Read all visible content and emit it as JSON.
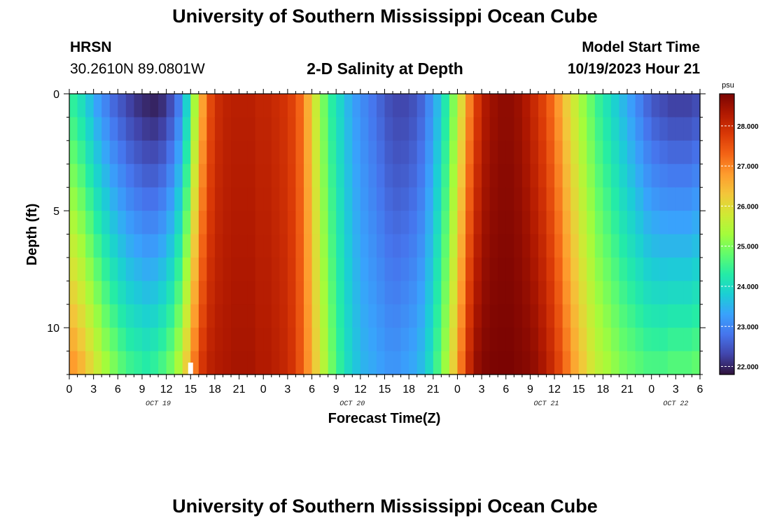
{
  "header": {
    "title_top": "University of Southern Mississippi Ocean Cube",
    "station": "HRSN",
    "coords": "30.2610N  89.0801W",
    "subtitle": "2-D Salinity at Depth",
    "model_label": "Model Start Time",
    "model_time": "10/19/2023 Hour 21",
    "title_bottom": "University of Southern Mississippi Ocean Cube"
  },
  "colors": {
    "ramp": [
      "#30123b",
      "#4145ab",
      "#4675ed",
      "#39a2fc",
      "#1bcfd4",
      "#24eca6",
      "#61fc6c",
      "#a4fc3b",
      "#d1e834",
      "#f3c63a",
      "#fe9b2d",
      "#f36315",
      "#d93806",
      "#b11901",
      "#7a0402"
    ],
    "marker": "#ffffff"
  },
  "chart_data": {
    "type": "heatmap",
    "title": "2-D Salinity at Depth",
    "xlabel": "Forecast Time(Z)",
    "ylabel": "Depth (ft)",
    "x_hours_range": [
      0,
      78
    ],
    "y_range": [
      0,
      12
    ],
    "y_ticks": [
      0,
      5,
      10
    ],
    "x_tick_labels": [
      "0",
      "3",
      "6",
      "9",
      "12",
      "15",
      "18",
      "21",
      "0",
      "3",
      "6",
      "9",
      "12",
      "15",
      "18",
      "21",
      "0",
      "3",
      "6",
      "9",
      "12",
      "15",
      "18",
      "21",
      "0",
      "3",
      "6"
    ],
    "date_labels": [
      {
        "text": "OCT 19",
        "hour": 11
      },
      {
        "text": "OCT 20",
        "hour": 35
      },
      {
        "text": "OCT 21",
        "hour": 59
      },
      {
        "text": "OCT 22",
        "hour": 75
      }
    ],
    "colorbar": {
      "unit": "psu",
      "min": 21.8,
      "max": 28.8,
      "ticks": [
        "22.000",
        "23.000",
        "24.000",
        "25.000",
        "26.000",
        "27.000",
        "28.000"
      ]
    },
    "marker_hour": 15,
    "surface_salinity_by_hour": [
      24.3,
      24.0,
      23.6,
      23.2,
      22.9,
      22.6,
      22.4,
      22.2,
      22.05,
      21.95,
      21.9,
      22.0,
      22.3,
      22.8,
      23.8,
      25.3,
      26.7,
      27.6,
      28.0,
      28.15,
      28.2,
      28.2,
      28.2,
      28.1,
      28.1,
      28.0,
      27.9,
      27.7,
      27.3,
      26.6,
      25.7,
      24.9,
      24.3,
      23.9,
      23.5,
      23.2,
      23.0,
      22.8,
      22.6,
      22.4,
      22.3,
      22.3,
      22.4,
      22.6,
      23.0,
      23.5,
      24.2,
      25.0,
      26.0,
      27.0,
      27.8,
      28.3,
      28.5,
      28.6,
      28.6,
      28.5,
      28.3,
      28.0,
      27.7,
      27.3,
      26.8,
      26.2,
      25.7,
      25.2,
      24.8,
      24.4,
      24.1,
      23.8,
      23.5,
      23.2,
      22.9,
      22.6,
      22.4,
      22.3,
      22.2,
      22.2,
      22.2,
      22.3,
      22.4
    ],
    "bottom_salinity_by_hour": [
      26.9,
      26.6,
      26.2,
      25.8,
      25.4,
      25.1,
      24.8,
      24.6,
      24.5,
      24.4,
      24.5,
      24.7,
      25.0,
      25.5,
      26.3,
      27.2,
      27.9,
      28.2,
      28.3,
      28.35,
      28.4,
      28.4,
      28.4,
      28.3,
      28.3,
      28.2,
      28.1,
      27.9,
      27.5,
      26.9,
      26.2,
      25.5,
      24.9,
      24.4,
      24.0,
      23.7,
      23.5,
      23.4,
      23.3,
      23.2,
      23.2,
      23.3,
      23.4,
      23.6,
      24.0,
      24.6,
      25.3,
      26.2,
      27.2,
      28.1,
      28.6,
      28.75,
      28.8,
      28.8,
      28.8,
      28.75,
      28.7,
      28.6,
      28.4,
      28.1,
      27.7,
      27.2,
      26.7,
      26.3,
      25.9,
      25.6,
      25.4,
      25.2,
      25.0,
      24.9,
      24.8,
      24.7,
      24.7,
      24.7,
      24.8,
      24.8,
      24.8,
      24.9,
      25.0
    ]
  }
}
